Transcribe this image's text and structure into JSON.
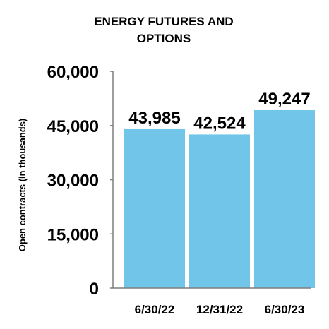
{
  "chart_data": {
    "type": "bar",
    "title_lines": [
      "ENERGY FUTURES AND",
      "OPTIONS"
    ],
    "ylabel": "Open contracts (in thousands)",
    "xlabel": "",
    "categories": [
      "6/30/22",
      "12/31/22",
      "6/30/23"
    ],
    "values": [
      43985,
      42524,
      49247
    ],
    "data_labels": [
      "43,985",
      "42,524",
      "49,247"
    ],
    "ylim": [
      0,
      60000
    ],
    "yticks": [
      0,
      15000,
      30000,
      45000,
      60000
    ],
    "ytick_labels": [
      "0",
      "15,000",
      "30,000",
      "45,000",
      "60,000"
    ],
    "grid": false,
    "legend": "none",
    "bar_color": "#71C5E8",
    "axis_color": "#7F7F7F"
  }
}
